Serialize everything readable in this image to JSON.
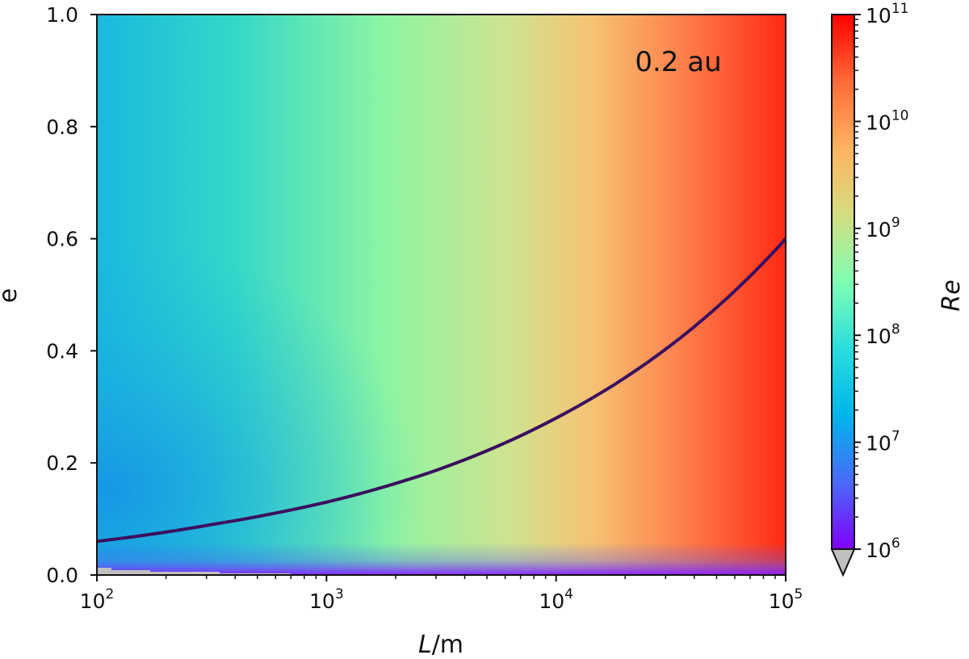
{
  "chart_data": {
    "type": "heatmap",
    "title": "",
    "annotation": "0.2 au",
    "x": {
      "label_italic": "L",
      "label_rest": "/m",
      "scale": "log",
      "range": [
        100,
        100000
      ],
      "ticks": [
        {
          "value": 100,
          "base": "10",
          "exp": "2"
        },
        {
          "value": 1000,
          "base": "10",
          "exp": "3"
        },
        {
          "value": 10000,
          "base": "10",
          "exp": "4"
        },
        {
          "value": 100000,
          "base": "10",
          "exp": "5"
        }
      ]
    },
    "y": {
      "label": "e",
      "scale": "linear",
      "range": [
        0.0,
        1.0
      ],
      "ticks": [
        {
          "value": 0.0,
          "label": "0.0"
        },
        {
          "value": 0.2,
          "label": "0.2"
        },
        {
          "value": 0.4,
          "label": "0.4"
        },
        {
          "value": 0.6,
          "label": "0.6"
        },
        {
          "value": 0.8,
          "label": "0.8"
        },
        {
          "value": 1.0,
          "label": "1.0"
        }
      ]
    },
    "colorbar": {
      "label": "Re",
      "scale": "log",
      "range": [
        1000000,
        100000000000
      ],
      "extend": "min",
      "under_color": "#c0c0c0",
      "colormap": "rainbow",
      "ticks": [
        {
          "value": 1000000,
          "base": "10",
          "exp": "6"
        },
        {
          "value": 10000000,
          "base": "10",
          "exp": "7"
        },
        {
          "value": 100000000,
          "base": "10",
          "exp": "8"
        },
        {
          "value": 1000000000,
          "base": "10",
          "exp": "9"
        },
        {
          "value": 10000000000,
          "base": "10",
          "exp": "10"
        },
        {
          "value": 100000000000,
          "base": "10",
          "exp": "11"
        }
      ]
    },
    "curve": {
      "color": "#3b0f5e",
      "points": [
        {
          "L": 100,
          "e": 0.06
        },
        {
          "L": 316,
          "e": 0.09
        },
        {
          "L": 1000,
          "e": 0.13
        },
        {
          "L": 3162,
          "e": 0.19
        },
        {
          "L": 10000,
          "e": 0.28
        },
        {
          "L": 31623,
          "e": 0.41
        },
        {
          "L": 100000,
          "e": 0.6
        }
      ]
    }
  }
}
